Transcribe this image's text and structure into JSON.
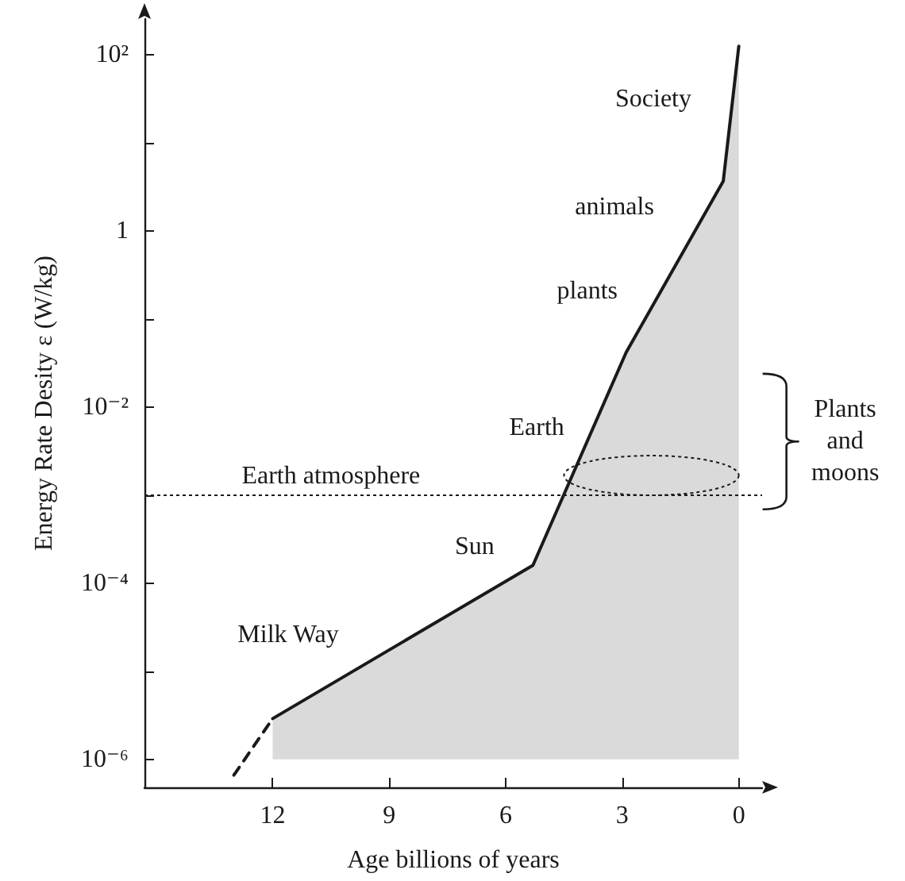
{
  "chart_data": {
    "type": "line",
    "xlabel": "Age billions of years",
    "ylabel": "Energy Rate Desity ε (W/kg)",
    "xlim": [
      15.3,
      -0.6
    ],
    "xticks": [
      12,
      9,
      6,
      3,
      0
    ],
    "ylim": [
      4.8e-07,
      257
    ],
    "log": "y",
    "yticks": [
      {
        "value": 100,
        "label": "10²"
      },
      {
        "value": 10,
        "label": null
      },
      {
        "value": 1,
        "label": "1"
      },
      {
        "value": 0.1,
        "label": null
      },
      {
        "value": 0.01,
        "label": "10⁻²"
      },
      {
        "value": 0.001,
        "label": null
      },
      {
        "value": 0.0001,
        "label": "10⁻⁴"
      },
      {
        "value": 1e-05,
        "label": null
      },
      {
        "value": 1e-06,
        "label": "10⁻⁶"
      }
    ],
    "series": [
      {
        "type": "line",
        "line_style": "dashed",
        "color": "#1a1a1a",
        "x": [
          13.0,
          12.0
        ],
        "values": [
          6.6e-07,
          2.9e-06
        ]
      },
      {
        "type": "area",
        "line_style": "solid",
        "color": "#1a1a1a",
        "x": [
          12.0,
          5.3,
          2.9,
          0.4,
          0
        ],
        "values": [
          2.9e-06,
          0.00016,
          0.042,
          3.7,
          126
        ]
      }
    ],
    "ref_lines": [
      {
        "axis": "y",
        "value": 0.001,
        "label": "Earth atmosphere",
        "line_style": "dotted",
        "color": "#1a1a1a"
      }
    ],
    "annotations": [
      "Society",
      "animals",
      "plants",
      "Earth",
      "Sun",
      "Milk Way",
      "Plants and moons"
    ],
    "marker": "none"
  }
}
